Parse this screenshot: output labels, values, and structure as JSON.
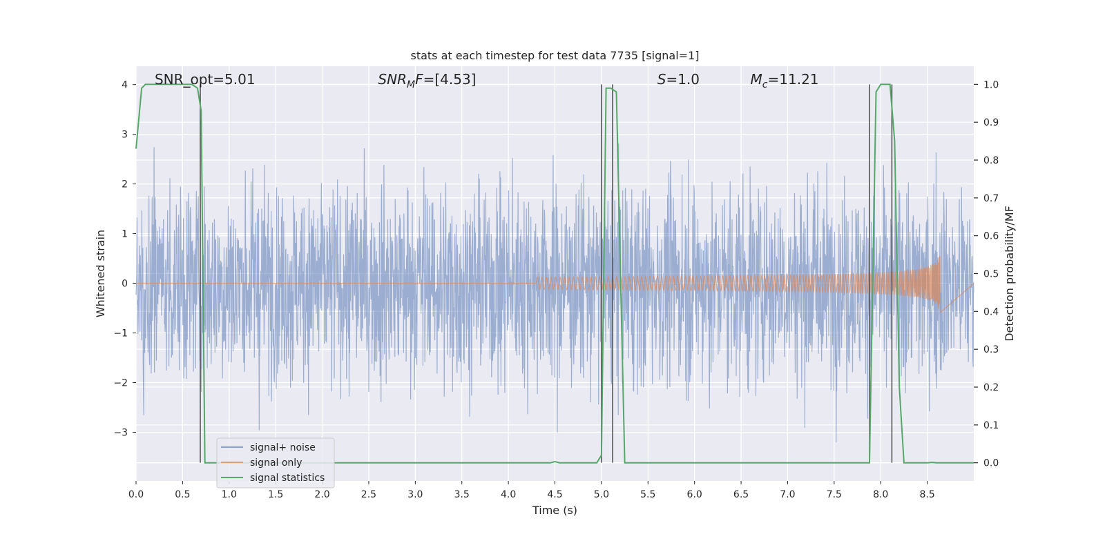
{
  "chart_data": {
    "type": "line",
    "title": "stats at each timestep for test data 7735 [signal=1]",
    "xlabel": "Time (s)",
    "ylabel": "Whitened strain",
    "y2label": "Detection probability/MF",
    "xlim": [
      0,
      9.0
    ],
    "ylim": [
      -3.98,
      4.37
    ],
    "y2lim": [
      -0.048,
      1.048
    ],
    "xticks": [
      0.0,
      0.5,
      1.0,
      1.5,
      2.0,
      2.5,
      3.0,
      3.5,
      4.0,
      4.5,
      5.0,
      5.5,
      6.0,
      6.5,
      7.0,
      7.5,
      8.0,
      8.5
    ],
    "xtick_labels": [
      "0.0",
      "0.5",
      "1.0",
      "1.5",
      "2.0",
      "2.5",
      "3.0",
      "3.5",
      "4.0",
      "4.5",
      "5.0",
      "5.5",
      "6.0",
      "6.5",
      "7.0",
      "7.5",
      "8.0",
      "8.5"
    ],
    "yticks": [
      -3,
      -2,
      -1,
      0,
      1,
      2,
      3,
      4
    ],
    "ytick_labels": [
      "−3",
      "−2",
      "−1",
      "0",
      "1",
      "2",
      "3",
      "4"
    ],
    "y2ticks": [
      0.0,
      0.1,
      0.2,
      0.3,
      0.4,
      0.5,
      0.6,
      0.7,
      0.8,
      0.9,
      1.0
    ],
    "y2tick_labels": [
      "0.0",
      "0.1",
      "0.2",
      "0.3",
      "0.4",
      "0.5",
      "0.6",
      "0.7",
      "0.8",
      "0.9",
      "1.0"
    ],
    "grid": true,
    "legend_position": "lower-left",
    "annotations": [
      {
        "text": "SNR_opt=5.01",
        "x": 0.2
      },
      {
        "text": "SNR_MF=[4.53]",
        "x": 2.6
      },
      {
        "text": "S=1.0",
        "x": 5.6
      },
      {
        "text": "M_c=11.21",
        "x": 6.6
      }
    ],
    "series": [
      {
        "name": "signal+ noise",
        "color": "#4c72b0",
        "description_type": "noise",
        "amplitude_typical": 1.6,
        "amplitude_peak": 3.6
      },
      {
        "name": "signal only",
        "color": "#dd8452",
        "description_type": "chirp",
        "x_start": 4.3,
        "x_end": 8.64,
        "peak_amplitude": 0.7
      },
      {
        "name": "signal statistics",
        "color": "#55a868",
        "x": [
          0.0,
          0.06,
          0.1,
          0.2,
          0.3,
          0.4,
          0.5,
          0.6,
          0.66,
          0.7,
          0.74,
          0.8,
          1.0,
          2.0,
          3.0,
          4.0,
          4.45,
          4.5,
          4.55,
          4.6,
          4.8,
          4.95,
          5.0,
          5.05,
          5.1,
          5.16,
          5.25,
          5.3,
          5.5,
          6.0,
          7.0,
          7.5,
          7.88,
          7.95,
          8.0,
          8.05,
          8.1,
          8.15,
          8.2,
          8.25,
          8.3,
          8.5,
          8.55,
          8.6,
          8.7,
          9.0
        ],
        "y": [
          0.83,
          0.99,
          1.0,
          1.0,
          1.0,
          1.0,
          1.0,
          1.0,
          0.99,
          0.93,
          0.0,
          0.0,
          0.0,
          0.0,
          0.0,
          0.0,
          0.0,
          0.003,
          0.0,
          0.0,
          0.0,
          0.0,
          0.02,
          0.99,
          0.99,
          0.98,
          0.0,
          0.0,
          0.0,
          0.0,
          0.0,
          0.0,
          0.0,
          0.98,
          1.0,
          1.0,
          1.0,
          0.85,
          0.2,
          0.0,
          0.0,
          0.0,
          0.001,
          0.0,
          0.0,
          0.0
        ]
      }
    ],
    "vlines": [
      {
        "x": 0.69,
        "color": "#555555"
      },
      {
        "x": 5.0,
        "color": "#555555"
      },
      {
        "x": 5.12,
        "color": "#555555"
      },
      {
        "x": 7.88,
        "color": "#555555"
      },
      {
        "x": 8.12,
        "color": "#555555"
      }
    ]
  }
}
